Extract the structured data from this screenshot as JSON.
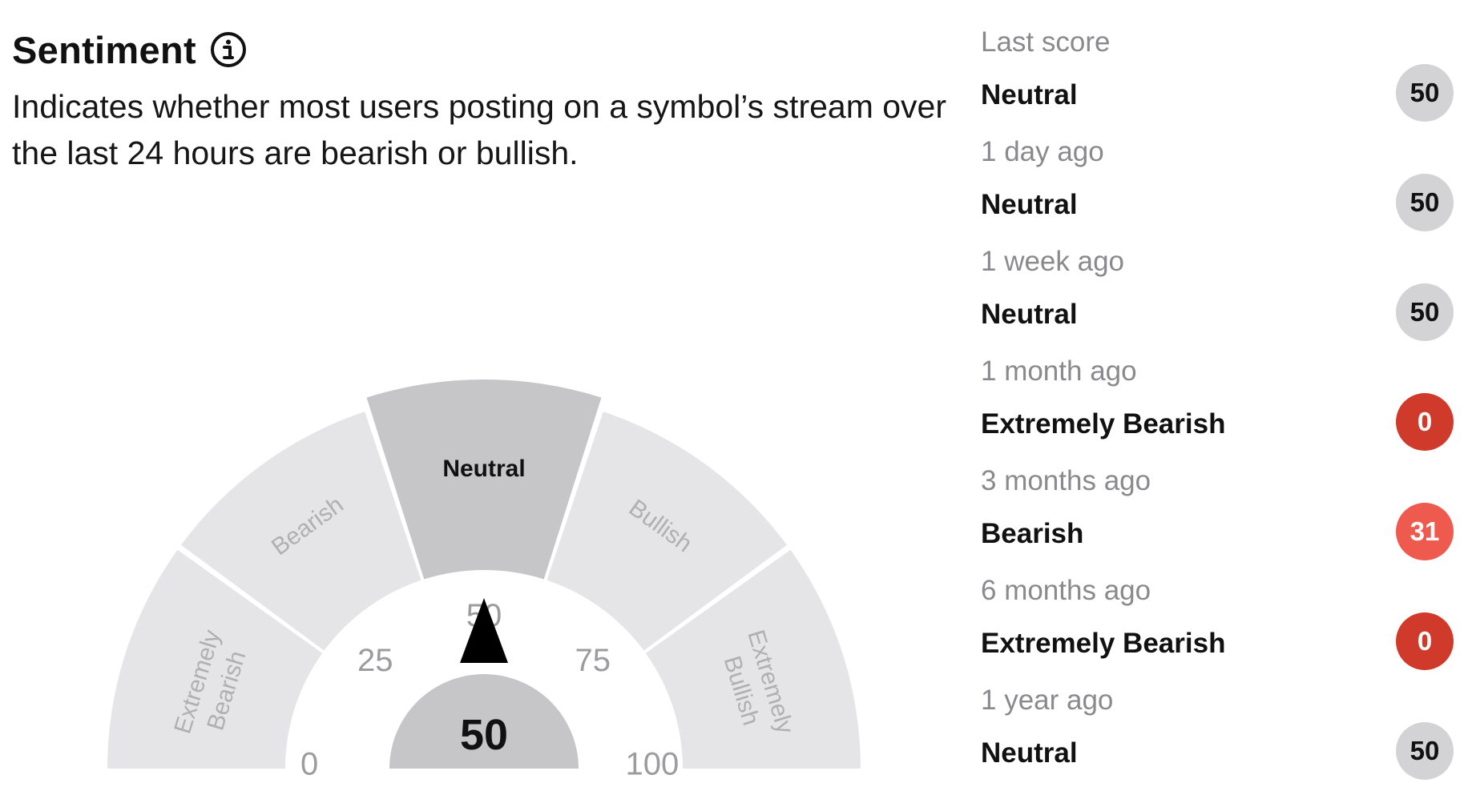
{
  "header": {
    "title": "Sentiment",
    "description": "Indicates whether most users posting on a symbol’s stream over the last 24 hours are bearish or bullish."
  },
  "gauge": {
    "value": "50",
    "current_segment": "Neutral",
    "segments": [
      {
        "label_lines": [
          "Extremely",
          "Bearish"
        ],
        "active": false
      },
      {
        "label_lines": [
          "Bearish"
        ],
        "active": false
      },
      {
        "label_lines": [
          "Neutral"
        ],
        "active": true
      },
      {
        "label_lines": [
          "Bullish"
        ],
        "active": false
      },
      {
        "label_lines": [
          "Extremely",
          "Bullish"
        ],
        "active": false
      }
    ],
    "ticks": [
      "0",
      "25",
      "50",
      "75",
      "100"
    ],
    "colors": {
      "segment": "#e5e5e8",
      "segment_active": "#c6c6c9",
      "needle": "#000000",
      "hub": "#c6c6c9"
    }
  },
  "history": {
    "items": [
      {
        "period": "Last score",
        "sentiment": "Neutral",
        "score": "50",
        "color": "#d3d3d6",
        "text_color": "#111111"
      },
      {
        "period": "1 day ago",
        "sentiment": "Neutral",
        "score": "50",
        "color": "#d3d3d6",
        "text_color": "#111111"
      },
      {
        "period": "1 week ago",
        "sentiment": "Neutral",
        "score": "50",
        "color": "#d3d3d6",
        "text_color": "#111111"
      },
      {
        "period": "1 month ago",
        "sentiment": "Extremely Bearish",
        "score": "0",
        "color": "#cf3a2a",
        "text_color": "#ffffff"
      },
      {
        "period": "3 months ago",
        "sentiment": "Bearish",
        "score": "31",
        "color": "#ef5a4e",
        "text_color": "#ffffff"
      },
      {
        "period": "6 months ago",
        "sentiment": "Extremely Bearish",
        "score": "0",
        "color": "#cf3a2a",
        "text_color": "#ffffff"
      },
      {
        "period": "1 year ago",
        "sentiment": "Neutral",
        "score": "50",
        "color": "#d3d3d6",
        "text_color": "#111111"
      }
    ]
  }
}
